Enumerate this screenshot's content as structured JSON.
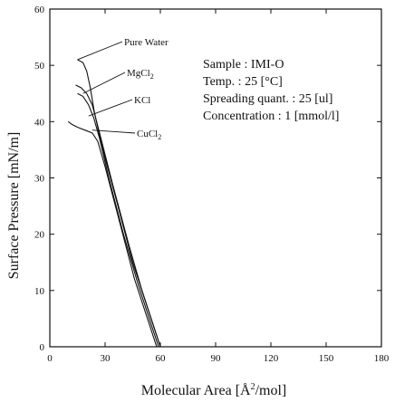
{
  "chart_data": {
    "type": "line",
    "xlabel_prefix": "Molecular Area [Å",
    "xlabel_sup": "2",
    "xlabel_suffix": "/mol]",
    "ylabel": "Surface Pressure [mN/m]",
    "xlim": [
      0,
      180
    ],
    "ylim": [
      0,
      60
    ],
    "x_ticks": [
      0,
      30,
      60,
      90,
      120,
      150,
      180
    ],
    "y_ticks": [
      0,
      10,
      20,
      30,
      40,
      50,
      60
    ],
    "grid": false,
    "annotations": [
      "Sample : IMI-O",
      "Temp. : 25 [°C]",
      "Spreading quant. : 25 [ul]",
      "Concentration : 1 [mmol/l]"
    ],
    "series": [
      {
        "name": "Pure Water",
        "name_main": "Pure Water",
        "name_sub": "",
        "points": [
          [
            60,
            0
          ],
          [
            57,
            3
          ],
          [
            52,
            8
          ],
          [
            45,
            15
          ],
          [
            37,
            25
          ],
          [
            28,
            36
          ],
          [
            24,
            42
          ],
          [
            22,
            46
          ],
          [
            20,
            49
          ],
          [
            18,
            50.5
          ],
          [
            15,
            51
          ]
        ]
      },
      {
        "name": "MgCl2",
        "name_main": "MgCl",
        "name_sub": "2",
        "points": [
          [
            60,
            0
          ],
          [
            56,
            4
          ],
          [
            50,
            10
          ],
          [
            43,
            18
          ],
          [
            34,
            29
          ],
          [
            27,
            38
          ],
          [
            23,
            43
          ],
          [
            20,
            45
          ],
          [
            17,
            46
          ],
          [
            14,
            46.5
          ]
        ]
      },
      {
        "name": "KCl",
        "name_main": "KCl",
        "name_sub": "",
        "points": [
          [
            59,
            0
          ],
          [
            55,
            4
          ],
          [
            48,
            11
          ],
          [
            40,
            20
          ],
          [
            32,
            30
          ],
          [
            27,
            37
          ],
          [
            24,
            40.5
          ],
          [
            21,
            43
          ],
          [
            18,
            44.5
          ],
          [
            15,
            45
          ]
        ]
      },
      {
        "name": "CuCl2",
        "name_main": "CuCl",
        "name_sub": "2",
        "points": [
          [
            58,
            0
          ],
          [
            54,
            4
          ],
          [
            46,
            12
          ],
          [
            38,
            22
          ],
          [
            30,
            32
          ],
          [
            26,
            36.5
          ],
          [
            23,
            38
          ],
          [
            19,
            38.5
          ],
          [
            15,
            39
          ],
          [
            12,
            39.5
          ],
          [
            10,
            40
          ]
        ]
      }
    ]
  }
}
